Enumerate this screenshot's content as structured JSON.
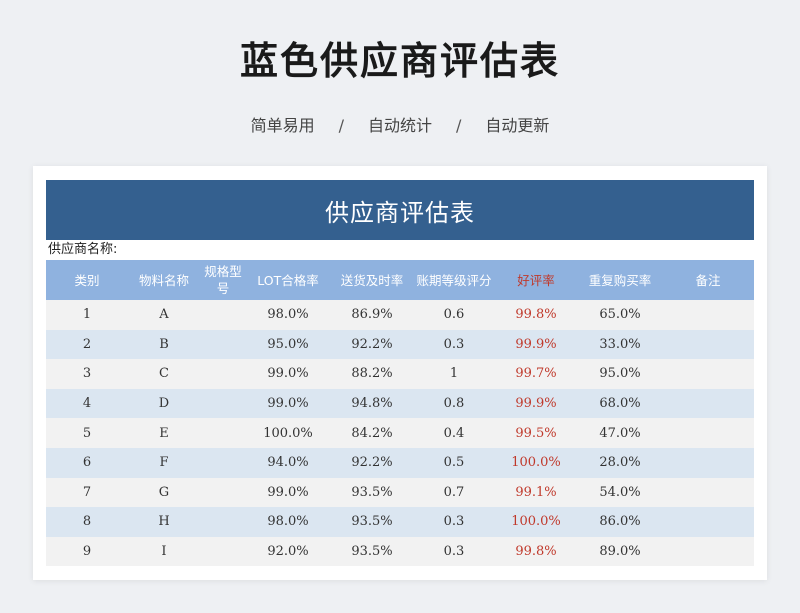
{
  "header": {
    "title": "蓝色供应商评估表",
    "subtitle_items": [
      "简单易用",
      "自动统计",
      "自动更新"
    ],
    "separator": "/"
  },
  "sheet": {
    "title": "供应商评估表",
    "supplier_label": "供应商名称:",
    "columns": [
      "类别",
      "物料名称",
      "规格型号",
      "LOT合格率",
      "送货及时率",
      "账期等级评分",
      "好评率",
      "重复购买率",
      "备注"
    ],
    "rows": [
      [
        "1",
        "A",
        "",
        "98.0%",
        "86.9%",
        "0.6",
        "99.8%",
        "65.0%",
        ""
      ],
      [
        "2",
        "B",
        "",
        "95.0%",
        "92.2%",
        "0.3",
        "99.9%",
        "33.0%",
        ""
      ],
      [
        "3",
        "C",
        "",
        "99.0%",
        "88.2%",
        "1",
        "99.7%",
        "95.0%",
        ""
      ],
      [
        "4",
        "D",
        "",
        "99.0%",
        "94.8%",
        "0.8",
        "99.9%",
        "68.0%",
        ""
      ],
      [
        "5",
        "E",
        "",
        "100.0%",
        "84.2%",
        "0.4",
        "99.5%",
        "47.0%",
        ""
      ],
      [
        "6",
        "F",
        "",
        "94.0%",
        "92.2%",
        "0.5",
        "100.0%",
        "28.0%",
        ""
      ],
      [
        "7",
        "G",
        "",
        "99.0%",
        "93.5%",
        "0.7",
        "99.1%",
        "54.0%",
        ""
      ],
      [
        "8",
        "H",
        "",
        "98.0%",
        "93.5%",
        "0.3",
        "100.0%",
        "86.0%",
        ""
      ],
      [
        "9",
        "I",
        "",
        "92.0%",
        "93.5%",
        "0.3",
        "99.8%",
        "89.0%",
        ""
      ]
    ]
  },
  "colors": {
    "title_bar": "#34608f",
    "header_row": "#8fb2df",
    "row_odd": "#f2f2f2",
    "row_even": "#dbe6f1",
    "highlight_text": "#c0392b"
  }
}
